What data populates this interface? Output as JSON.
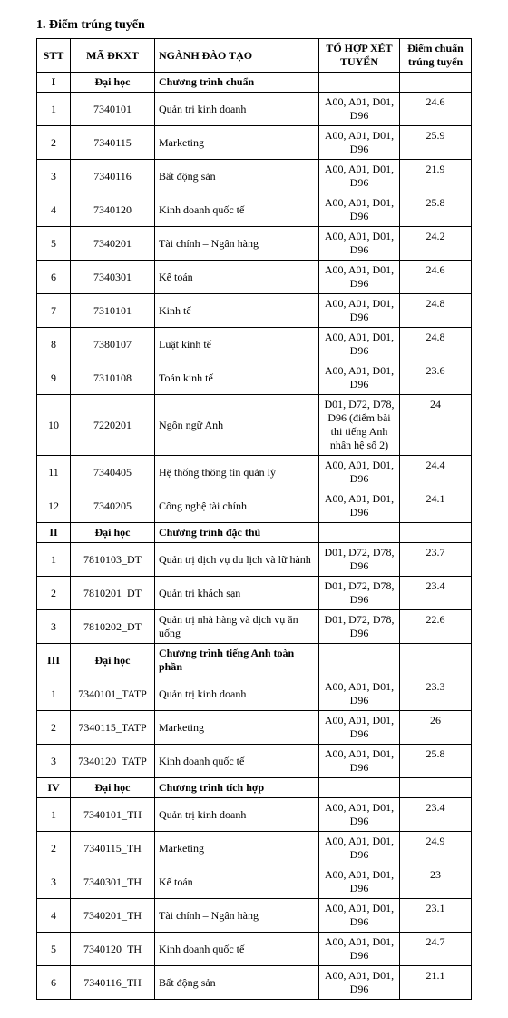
{
  "title": "1. Điểm trúng tuyển",
  "columns": {
    "stt": "STT",
    "ma": "MÃ ĐKXT",
    "nganh": "NGÀNH ĐÀO TẠO",
    "tohop": "TỔ HỢP XÉT TUYỂN",
    "diem": "Điểm chuẩn trúng tuyển"
  },
  "sections": [
    {
      "num": "I",
      "label": "Đại học",
      "program": "Chương trình chuẩn",
      "rows": [
        {
          "stt": "1",
          "ma": "7340101",
          "nganh": "Quản trị kinh doanh",
          "tohop": "A00, A01, D01, D96",
          "diem": "24.6"
        },
        {
          "stt": "2",
          "ma": "7340115",
          "nganh": "Marketing",
          "tohop": "A00, A01, D01, D96",
          "diem": "25.9"
        },
        {
          "stt": "3",
          "ma": "7340116",
          "nganh": "Bất động sản",
          "tohop": "A00, A01, D01, D96",
          "diem": "21.9"
        },
        {
          "stt": "4",
          "ma": "7340120",
          "nganh": "Kinh doanh quốc tế",
          "tohop": "A00, A01, D01, D96",
          "diem": "25.8"
        },
        {
          "stt": "5",
          "ma": "7340201",
          "nganh": "Tài chính – Ngân hàng",
          "tohop": "A00, A01, D01, D96",
          "diem": "24.2"
        },
        {
          "stt": "6",
          "ma": "7340301",
          "nganh": "Kế toán",
          "tohop": "A00, A01, D01, D96",
          "diem": "24.6"
        },
        {
          "stt": "7",
          "ma": "7310101",
          "nganh": "Kinh tế",
          "tohop": "A00, A01, D01, D96",
          "diem": "24.8"
        },
        {
          "stt": "8",
          "ma": "7380107",
          "nganh": "Luật kinh tế",
          "tohop": "A00, A01, D01, D96",
          "diem": "24.8"
        },
        {
          "stt": "9",
          "ma": "7310108",
          "nganh": "Toán kinh tế",
          "tohop": "A00, A01, D01, D96",
          "diem": "23.6"
        },
        {
          "stt": "10",
          "ma": "7220201",
          "nganh": "Ngôn ngữ Anh",
          "tohop": "D01, D72, D78, D96 (điểm bài thi tiếng Anh nhân hệ số 2)",
          "diem": "24"
        },
        {
          "stt": "11",
          "ma": "7340405",
          "nganh": "Hệ thống thông tin quản lý",
          "tohop": "A00, A01, D01, D96",
          "diem": "24.4"
        },
        {
          "stt": "12",
          "ma": "7340205",
          "nganh": "Công nghệ tài chính",
          "tohop": "A00, A01, D01, D96",
          "diem": "24.1"
        }
      ]
    },
    {
      "num": "II",
      "label": "Đại học",
      "program": "Chương trình đặc thù",
      "rows": [
        {
          "stt": "1",
          "ma": "7810103_DT",
          "nganh": "Quản trị dịch vụ du lịch và lữ hành",
          "tohop": "D01, D72, D78, D96",
          "diem": "23.7"
        },
        {
          "stt": "2",
          "ma": "7810201_DT",
          "nganh": "Quản trị khách sạn",
          "tohop": "D01, D72, D78, D96",
          "diem": "23.4"
        },
        {
          "stt": "3",
          "ma": "7810202_DT",
          "nganh": "Quản trị nhà hàng và dịch vụ ăn uống",
          "tohop": "D01, D72, D78, D96",
          "diem": "22.6"
        }
      ]
    },
    {
      "num": "III",
      "label": "Đại học",
      "program": "Chương trình tiếng Anh toàn phần",
      "rows": [
        {
          "stt": "1",
          "ma": "7340101_TATP",
          "nganh": "Quản trị kinh doanh",
          "tohop": "A00, A01, D01, D96",
          "diem": "23.3"
        },
        {
          "stt": "2",
          "ma": "7340115_TATP",
          "nganh": "Marketing",
          "tohop": "A00, A01, D01, D96",
          "diem": "26"
        },
        {
          "stt": "3",
          "ma": "7340120_TATP",
          "nganh": "Kinh doanh quốc tế",
          "tohop": "A00, A01, D01, D96",
          "diem": "25.8"
        }
      ]
    },
    {
      "num": "IV",
      "label": "Đại học",
      "program": "Chương trình tích hợp",
      "rows": [
        {
          "stt": "1",
          "ma": "7340101_TH",
          "nganh": "Quản trị kinh doanh",
          "tohop": "A00, A01, D01, D96",
          "diem": "23.4"
        },
        {
          "stt": "2",
          "ma": "7340115_TH",
          "nganh": "Marketing",
          "tohop": "A00, A01, D01, D96",
          "diem": "24.9"
        },
        {
          "stt": "3",
          "ma": "7340301_TH",
          "nganh": "Kế toán",
          "tohop": "A00, A01, D01, D96",
          "diem": "23"
        },
        {
          "stt": "4",
          "ma": "7340201_TH",
          "nganh": "Tài chính – Ngân hàng",
          "tohop": "A00, A01, D01, D96",
          "diem": "23.1"
        },
        {
          "stt": "5",
          "ma": "7340120_TH",
          "nganh": "Kinh doanh quốc tế",
          "tohop": "A00, A01, D01, D96",
          "diem": "24.7"
        },
        {
          "stt": "6",
          "ma": "7340116_TH",
          "nganh": "Bất động sản",
          "tohop": "A00, A01, D01, D96",
          "diem": "21.1"
        }
      ]
    }
  ]
}
